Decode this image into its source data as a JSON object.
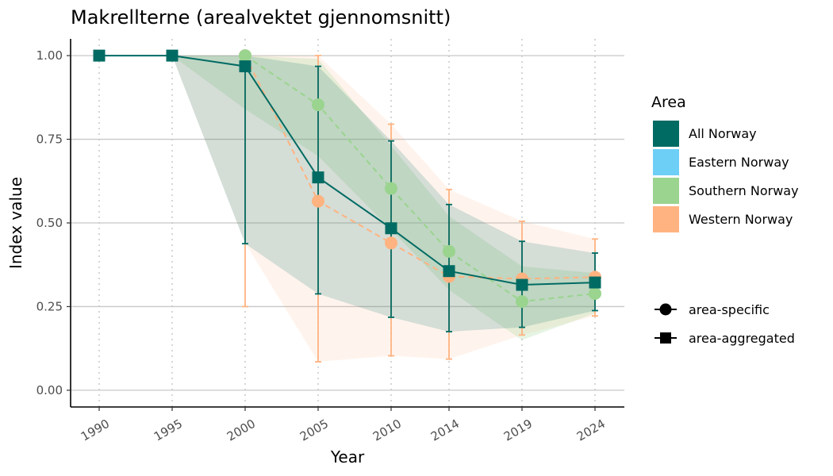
{
  "chart_data": {
    "type": "line",
    "title": "Makrellterne (arealvektet gjennomsnitt)",
    "xlabel": "Year",
    "ylabel": "Index value",
    "categories": [
      "1990",
      "1995",
      "2000",
      "2005",
      "2010",
      "2014",
      "2019",
      "2024"
    ],
    "ylim": [
      -0.05,
      1.05
    ],
    "yticks": [
      0.0,
      0.25,
      0.5,
      0.75,
      1.0
    ],
    "ytick_labels": [
      "0.00",
      "0.25",
      "0.50",
      "0.75",
      "1.00"
    ],
    "grid": {
      "major_y": true,
      "vertical_dotted": true
    },
    "legend_position": "right",
    "legend_area": {
      "title": "Area",
      "entries": [
        {
          "label": "All Norway",
          "color": "#006b63"
        },
        {
          "label": "Eastern Norway",
          "color": "#6ecff6"
        },
        {
          "label": "Southern Norway",
          "color": "#9ad48f"
        },
        {
          "label": "Western Norway",
          "color": "#ffb380"
        }
      ]
    },
    "legend_shape": {
      "entries": [
        {
          "label": "area-specific",
          "shape": "circle"
        },
        {
          "label": "area-aggregated",
          "shape": "square"
        }
      ]
    },
    "series": [
      {
        "key": "western",
        "color": "#ffb380",
        "dash": true,
        "marker": "circle",
        "values": [
          null,
          null,
          1.0,
          0.565,
          0.44,
          0.34,
          0.333,
          0.338
        ],
        "lower": [
          null,
          null,
          0.25,
          0.085,
          0.103,
          0.093,
          0.165,
          0.222
        ],
        "upper": [
          null,
          null,
          1.0,
          1.0,
          0.795,
          0.6,
          0.505,
          0.452
        ],
        "band_lower": [
          null,
          1.0,
          0.44,
          0.085,
          0.103,
          0.093,
          0.165,
          0.222
        ],
        "band_upper": [
          null,
          1.0,
          1.0,
          1.0,
          0.795,
          0.6,
          0.505,
          0.452
        ],
        "band_opacity": 0.14
      },
      {
        "key": "southern",
        "color": "#9ad48f",
        "dash": true,
        "marker": "circle",
        "values": [
          null,
          null,
          1.0,
          0.853,
          0.603,
          0.415,
          0.265,
          0.289
        ],
        "band_lower": [
          null,
          1.0,
          0.84,
          0.7,
          0.48,
          0.3,
          0.15,
          0.23
        ],
        "band_upper": [
          null,
          1.0,
          1.0,
          0.99,
          0.73,
          0.52,
          0.37,
          0.35
        ],
        "band_opacity": 0.25
      },
      {
        "key": "all",
        "color": "#006b63",
        "dash": false,
        "marker": "square",
        "values": [
          1.0,
          1.0,
          0.968,
          0.636,
          0.484,
          0.356,
          0.315,
          0.322
        ],
        "lower": [
          null,
          null,
          0.438,
          0.288,
          0.218,
          0.175,
          0.188,
          0.238
        ],
        "upper": [
          null,
          null,
          1.0,
          0.968,
          0.745,
          0.555,
          0.445,
          0.41
        ],
        "band_lower": [
          null,
          1.0,
          0.438,
          0.288,
          0.218,
          0.175,
          0.188,
          0.238
        ],
        "band_upper": [
          null,
          1.0,
          1.0,
          0.968,
          0.745,
          0.555,
          0.445,
          0.41
        ],
        "band_opacity": 0.17
      }
    ]
  }
}
